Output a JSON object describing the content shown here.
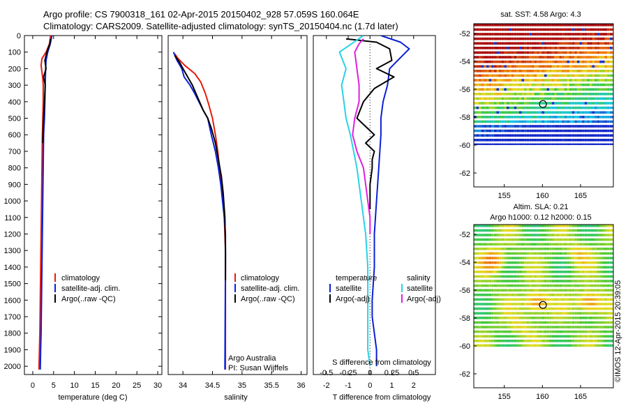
{
  "header": {
    "line1": "Argo profile: CS 7900318_161 02-Apr-2015 20150402_928 57.059S 160.064E",
    "line2": "Climatology: CARS2009. Satellite-adjusted climatology: synTS_20150404.nc (1.7d later)"
  },
  "colors": {
    "climatology": "#e8190c",
    "satellite": "#0a1fd6",
    "argo": "#000000",
    "salinity_satellite": "#28d2e6",
    "salinity_argo": "#e01ee0"
  },
  "chart_data": [
    {
      "type": "line",
      "panel": "temperature",
      "xlabel": "temperature (deg C)",
      "ylabel": "",
      "xlim": [
        -2,
        31
      ],
      "ylim": [
        2050,
        0
      ],
      "xticks": [
        0,
        5,
        10,
        15,
        20,
        25,
        30
      ],
      "yticks": [
        0,
        100,
        200,
        300,
        400,
        500,
        600,
        700,
        800,
        900,
        1000,
        1100,
        1200,
        1300,
        1400,
        1500,
        1600,
        1700,
        1800,
        1900,
        2000
      ],
      "legend": {
        "position": "center",
        "entries": [
          "climatology",
          "satellite-adj. clim.",
          "Argo(..raw -QC)"
        ]
      },
      "series": [
        {
          "name": "climatology",
          "x": [
            4.3,
            4.0,
            3.2,
            2.2,
            2.0,
            2.2,
            2.4,
            2.5,
            2.5,
            2.4,
            2.3,
            2.2,
            2.1,
            2.0,
            1.9,
            1.8,
            1.7,
            1.6,
            1.5,
            1.5
          ],
          "y": [
            0,
            50,
            100,
            140,
            180,
            220,
            260,
            300,
            400,
            500,
            600,
            800,
            1000,
            1200,
            1400,
            1600,
            1800,
            1900,
            2000,
            2020
          ]
        },
        {
          "name": "satellite-adj. clim.",
          "x": [
            4.6,
            4.2,
            3.6,
            3.2,
            3.1,
            3.0,
            2.9,
            2.8,
            2.6,
            2.5,
            2.4,
            2.3,
            2.2,
            2.1,
            2.0,
            1.9,
            1.8
          ],
          "y": [
            0,
            50,
            100,
            150,
            200,
            300,
            400,
            500,
            600,
            800,
            1000,
            1200,
            1400,
            1600,
            1800,
            1900,
            2020
          ]
        },
        {
          "name": "Argo(..raw -QC)",
          "x": [
            4.3,
            4.1,
            3.4,
            2.9,
            3.2,
            2.6,
            3.0,
            2.8,
            2.6,
            2.4
          ],
          "y": [
            20,
            50,
            100,
            150,
            200,
            250,
            300,
            400,
            500,
            650
          ]
        }
      ]
    },
    {
      "type": "line",
      "panel": "salinity",
      "xlabel": "salinity",
      "ylabel": "",
      "xlim": [
        33.75,
        36.1
      ],
      "ylim": [
        2050,
        0
      ],
      "xticks": [
        34,
        34.5,
        35,
        35.5,
        36
      ],
      "legend": {
        "position": "center",
        "entries": [
          "climatology",
          "satellite-adj. clim.",
          "Argo(..raw -QC)"
        ]
      },
      "annotations": [
        "Argo Australia",
        "PI: Susan Wijffels"
      ],
      "series": [
        {
          "name": "climatology",
          "x": [
            33.86,
            33.92,
            34.03,
            34.2,
            34.3,
            34.38,
            34.44,
            34.5,
            34.55,
            34.59,
            34.62,
            34.65,
            34.68,
            34.7,
            34.71,
            34.72,
            34.72,
            34.72
          ],
          "y": [
            110,
            140,
            180,
            230,
            280,
            350,
            420,
            500,
            600,
            700,
            800,
            900,
            1000,
            1100,
            1200,
            1300,
            1500,
            2020
          ]
        },
        {
          "name": "satellite-adj. clim.",
          "x": [
            33.84,
            33.9,
            33.98,
            34.02,
            34.12,
            34.2,
            34.27,
            34.34,
            34.42,
            34.48,
            34.55,
            34.6,
            34.64,
            34.67,
            34.7,
            34.72,
            34.72,
            34.71
          ],
          "y": [
            100,
            150,
            200,
            250,
            300,
            350,
            400,
            450,
            500,
            600,
            700,
            800,
            900,
            1000,
            1100,
            1200,
            1400,
            2020
          ]
        },
        {
          "name": "Argo(..raw -QC)",
          "x": [
            33.86,
            33.94,
            34.0,
            34.08,
            34.16,
            34.22,
            34.28,
            34.34,
            34.42,
            34.48,
            34.55,
            34.6,
            34.65,
            34.68,
            34.71,
            34.72,
            34.72
          ],
          "y": [
            120,
            160,
            200,
            250,
            300,
            350,
            400,
            450,
            500,
            560,
            650,
            750,
            850,
            950,
            1100,
            1300,
            1480
          ]
        }
      ]
    },
    {
      "type": "line",
      "panel": "differences",
      "xlabel": "T difference from climatology",
      "xlabel2": "S difference from climatology",
      "xlim": [
        -2.6,
        3.0
      ],
      "ylim": [
        2050,
        0
      ],
      "xticks": [
        -2,
        -1,
        0,
        1,
        2
      ],
      "xticks2": [
        "-0.5",
        "-0.25",
        "0",
        "0.25",
        "0.5"
      ],
      "legend": {
        "position": "bottom",
        "groups": [
          {
            "title": "temperature",
            "entries": [
              "satellite",
              "Argo(-adj)"
            ]
          },
          {
            "title": "salinity",
            "entries": [
              "satellite",
              "Argo(-adj)"
            ]
          }
        ]
      },
      "series": [
        {
          "name": "temperature satellite",
          "x": [
            0.5,
            1.4,
            1.8,
            1.5,
            0.9,
            0.8,
            0.6,
            0.5,
            0.5,
            0.4,
            0.3,
            0.2,
            0.2,
            0.1,
            0.1,
            0.2,
            0.3,
            0.3
          ],
          "y": [
            0,
            40,
            80,
            120,
            200,
            300,
            400,
            500,
            600,
            800,
            1000,
            1200,
            1400,
            1600,
            1700,
            1800,
            1900,
            2000
          ]
        },
        {
          "name": "temperature Argo(-adj)",
          "x": [
            -1.1,
            0.3,
            0.9,
            1.0,
            0.3,
            1.1,
            0.2,
            -0.3,
            -0.6,
            -0.2,
            0.2,
            -0.2,
            0.2,
            0.1,
            0.1,
            0.0,
            0.0
          ],
          "y": [
            20,
            40,
            80,
            150,
            200,
            250,
            320,
            400,
            500,
            550,
            600,
            650,
            700,
            750,
            800,
            900,
            1050
          ]
        },
        {
          "name": "salinity satellite",
          "x": [
            -0.3,
            -1.4,
            -1.1,
            -1.3,
            -1.2,
            -1.1,
            -0.9,
            -0.6,
            -0.4,
            -0.2,
            -0.1,
            -0.1,
            -0.1,
            -0.1,
            -0.1,
            0.0
          ],
          "y": [
            0,
            100,
            200,
            300,
            400,
            500,
            600,
            800,
            1000,
            1200,
            1400,
            1600,
            1700,
            1800,
            1900,
            2000
          ]
        },
        {
          "name": "salinity Argo(-adj)",
          "x": [
            -0.3,
            -0.5,
            -0.7,
            -0.6,
            -0.5,
            -0.5,
            -0.7,
            -0.8,
            -0.6,
            -0.3,
            -0.2,
            -0.1,
            0.0,
            0.0
          ],
          "y": [
            20,
            50,
            100,
            200,
            300,
            400,
            500,
            600,
            700,
            800,
            900,
            1000,
            1100,
            1200
          ]
        }
      ]
    },
    {
      "type": "heatmap",
      "panel": "sst_map",
      "title": "sat. SST: 4.58 Argo: 4.3",
      "xlim": [
        151,
        169.3
      ],
      "ylim": [
        -63,
        -51.3
      ],
      "xticks": [
        155,
        160,
        165
      ],
      "yticks": [
        -52,
        -54,
        -56,
        -58,
        -60,
        -62
      ],
      "marker": {
        "lon": 160.064,
        "lat": -57.059
      }
    },
    {
      "type": "heatmap",
      "panel": "sla_map",
      "title": "Altim. SLA: 0.21",
      "subtitle": "Argo h1000: 0.12 h2000: 0.15",
      "xlim": [
        151,
        169.3
      ],
      "ylim": [
        -63,
        -51.3
      ],
      "xticks": [
        155,
        160,
        165
      ],
      "yticks": [
        -52,
        -54,
        -56,
        -58,
        -60,
        -62
      ],
      "marker": {
        "lon": 160.064,
        "lat": -57.059
      }
    }
  ],
  "footer": {
    "stamp": "©IMOS 12-Apr-2015 20:39:05"
  }
}
